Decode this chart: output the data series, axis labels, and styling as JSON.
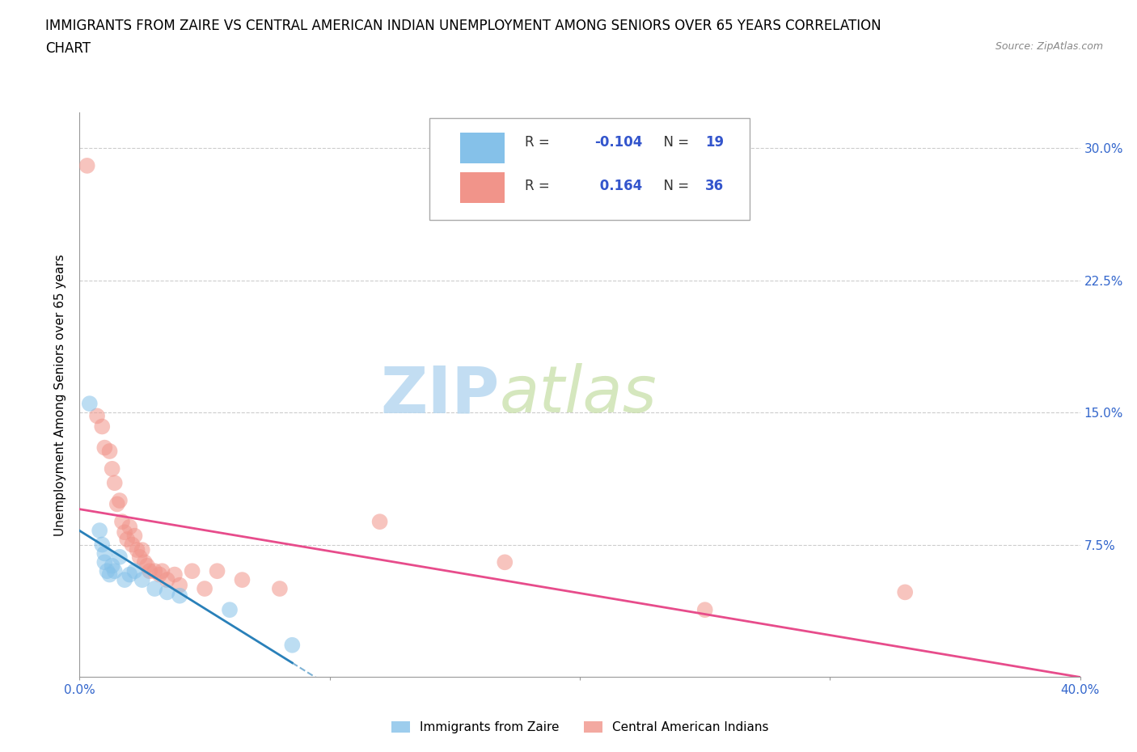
{
  "title_line1": "IMMIGRANTS FROM ZAIRE VS CENTRAL AMERICAN INDIAN UNEMPLOYMENT AMONG SENIORS OVER 65 YEARS CORRELATION",
  "title_line2": "CHART",
  "source": "Source: ZipAtlas.com",
  "ylabel": "Unemployment Among Seniors over 65 years",
  "xlim": [
    0.0,
    0.4
  ],
  "ylim": [
    0.0,
    0.32
  ],
  "xtick_positions": [
    0.0,
    0.1,
    0.2,
    0.3,
    0.4
  ],
  "xtick_labels": [
    "0.0%",
    "",
    "",
    "",
    "40.0%"
  ],
  "ytick_positions": [
    0.0,
    0.075,
    0.15,
    0.225,
    0.3
  ],
  "ytick_labels": [
    "",
    "7.5%",
    "15.0%",
    "22.5%",
    "30.0%"
  ],
  "zaire_color": "#85c1e9",
  "central_color": "#f1948a",
  "zaire_R": -0.104,
  "zaire_N": 19,
  "central_R": 0.164,
  "central_N": 36,
  "zaire_points": [
    [
      0.004,
      0.155
    ],
    [
      0.008,
      0.083
    ],
    [
      0.009,
      0.075
    ],
    [
      0.01,
      0.07
    ],
    [
      0.01,
      0.065
    ],
    [
      0.011,
      0.06
    ],
    [
      0.012,
      0.058
    ],
    [
      0.013,
      0.063
    ],
    [
      0.014,
      0.06
    ],
    [
      0.016,
      0.068
    ],
    [
      0.018,
      0.055
    ],
    [
      0.02,
      0.058
    ],
    [
      0.022,
      0.06
    ],
    [
      0.025,
      0.055
    ],
    [
      0.03,
      0.05
    ],
    [
      0.035,
      0.048
    ],
    [
      0.04,
      0.046
    ],
    [
      0.06,
      0.038
    ],
    [
      0.085,
      0.018
    ]
  ],
  "central_points": [
    [
      0.003,
      0.29
    ],
    [
      0.007,
      0.148
    ],
    [
      0.009,
      0.142
    ],
    [
      0.01,
      0.13
    ],
    [
      0.012,
      0.128
    ],
    [
      0.013,
      0.118
    ],
    [
      0.014,
      0.11
    ],
    [
      0.015,
      0.098
    ],
    [
      0.016,
      0.1
    ],
    [
      0.017,
      0.088
    ],
    [
      0.018,
      0.082
    ],
    [
      0.019,
      0.078
    ],
    [
      0.02,
      0.085
    ],
    [
      0.021,
      0.075
    ],
    [
      0.022,
      0.08
    ],
    [
      0.023,
      0.072
    ],
    [
      0.024,
      0.068
    ],
    [
      0.025,
      0.072
    ],
    [
      0.026,
      0.065
    ],
    [
      0.027,
      0.063
    ],
    [
      0.028,
      0.06
    ],
    [
      0.03,
      0.06
    ],
    [
      0.032,
      0.058
    ],
    [
      0.033,
      0.06
    ],
    [
      0.035,
      0.055
    ],
    [
      0.038,
      0.058
    ],
    [
      0.04,
      0.052
    ],
    [
      0.045,
      0.06
    ],
    [
      0.05,
      0.05
    ],
    [
      0.055,
      0.06
    ],
    [
      0.065,
      0.055
    ],
    [
      0.08,
      0.05
    ],
    [
      0.12,
      0.088
    ],
    [
      0.17,
      0.065
    ],
    [
      0.25,
      0.038
    ],
    [
      0.33,
      0.048
    ]
  ],
  "watermark_zip": "ZIP",
  "watermark_atlas": "atlas",
  "background_color": "#ffffff",
  "grid_color": "#cccccc",
  "legend_label_zaire": "Immigrants from Zaire",
  "legend_label_central": "Central American Indians",
  "zaire_line_color": "#2980b9",
  "central_line_color": "#e74c8b",
  "tick_color": "#3366cc",
  "title_fontsize": 12,
  "axis_label_fontsize": 11,
  "tick_fontsize": 11
}
